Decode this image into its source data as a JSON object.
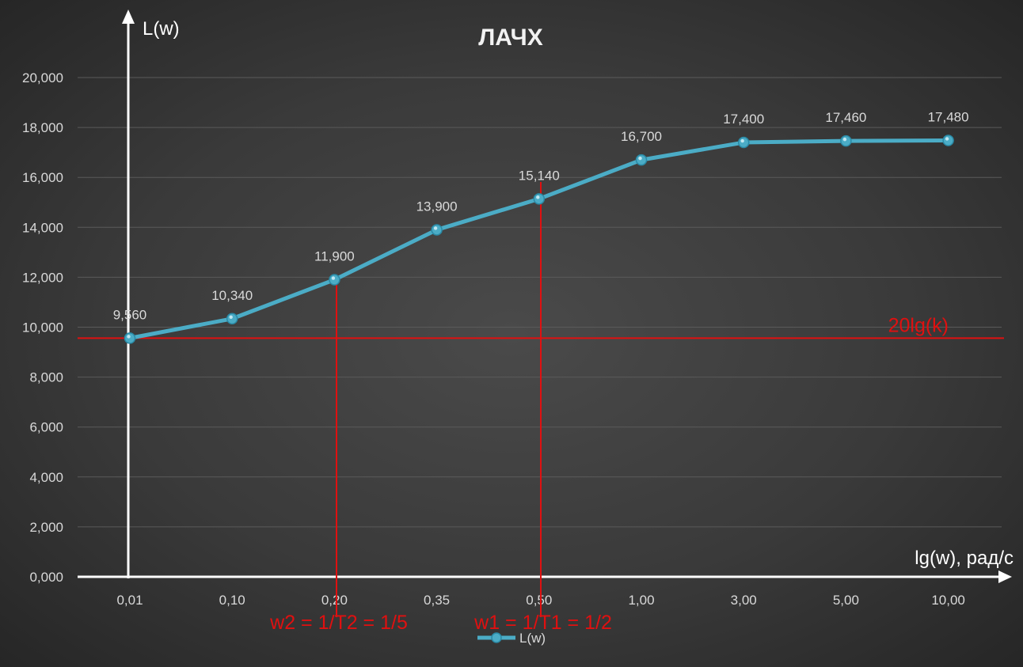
{
  "chart_data": {
    "type": "line",
    "title": "ЛАЧХ",
    "ylabel": "L(w)",
    "xlabel": "lg(w), рад/с",
    "categories": [
      "0,01",
      "0,10",
      "0,20",
      "0,35",
      "0,50",
      "1,00",
      "3,00",
      "5,00",
      "10,00"
    ],
    "series": [
      {
        "name": "L(w)",
        "values": [
          9.56,
          10.34,
          11.9,
          13.9,
          15.14,
          16.7,
          17.4,
          17.46,
          17.48
        ],
        "labels": [
          "9,560",
          "10,340",
          "11,900",
          "13,900",
          "15,140",
          "16,700",
          "17,400",
          "17,460",
          "17,480"
        ],
        "color": "#4bacc6"
      }
    ],
    "ylim": [
      0,
      20
    ],
    "yticks": [
      0,
      2,
      4,
      6,
      8,
      10,
      12,
      14,
      16,
      18,
      20
    ],
    "ytick_labels": [
      "0,000",
      "2,000",
      "4,000",
      "6,000",
      "8,000",
      "10,000",
      "12,000",
      "14,000",
      "16,000",
      "18,000",
      "20,000"
    ],
    "grid": true,
    "legend": "bottom",
    "annotations": {
      "horizontal_line": {
        "y": 9.56,
        "label": "20lg(k)",
        "color": "#e01010"
      },
      "vertical_lines": [
        {
          "x_category": "0,20",
          "label": "w2 = 1/T2 = 1/5",
          "color": "#e01010"
        },
        {
          "x_category": "0,50",
          "label": "w1 = 1/T1 = 1/2",
          "color": "#e01010"
        }
      ]
    }
  },
  "colors": {
    "line": "#4bacc6",
    "annotation": "#e01010",
    "axis": "#ffffff",
    "grid": "#5a5a5a",
    "text": "#d9d9d9"
  }
}
